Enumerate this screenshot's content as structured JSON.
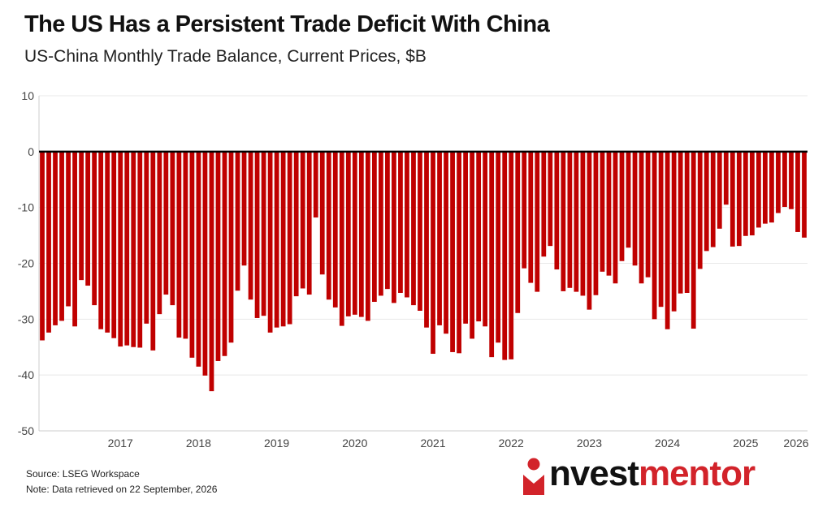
{
  "title": "The US Has a Persistent Trade Deficit With China",
  "subtitle": "US-China Monthly Trade Balance, Current Prices, $B",
  "footer": {
    "source": "Source: LSEG Workspace",
    "note": "Note: Data retrieved on 22 September, 2026"
  },
  "logo": {
    "part1": "nvest",
    "part2": "mentor",
    "icon": "person-i-icon"
  },
  "colors": {
    "bar": "#c00000",
    "zero_line": "#000000",
    "grid": "#e8e8e8",
    "brand": "#d2232a"
  },
  "chart_data": {
    "type": "bar",
    "title": "",
    "xlabel": "",
    "ylabel": "",
    "ylim": [
      -50,
      10
    ],
    "yticks": [
      10,
      0,
      -10,
      -20,
      -30,
      -40,
      -50
    ],
    "grid": true,
    "x_start": "2016-01",
    "xticks": [
      {
        "label": "2017",
        "date": "2017-01"
      },
      {
        "label": "2018",
        "date": "2018-01"
      },
      {
        "label": "2019",
        "date": "2019-01"
      },
      {
        "label": "2020",
        "date": "2020-01"
      },
      {
        "label": "2021",
        "date": "2021-01"
      },
      {
        "label": "2022",
        "date": "2022-01"
      },
      {
        "label": "2023",
        "date": "2023-01"
      },
      {
        "label": "2024",
        "date": "2024-01"
      },
      {
        "label": "2025",
        "date": "2025-01"
      },
      {
        "label": "2026",
        "date": "2026-01"
      }
    ],
    "series": [
      {
        "values": [
          -33.8,
          -32.4,
          -31.1,
          -30.3,
          -27.7,
          -31.3,
          -23.0,
          -24.0,
          -27.5,
          -31.8,
          -32.4,
          -33.4,
          -34.9,
          -34.7,
          -35.0,
          -35.1,
          -30.8,
          -35.6,
          -29.1,
          -25.6,
          -27.5,
          -33.3,
          -33.5,
          -36.9,
          -38.5,
          -40.1,
          -42.9,
          -37.5,
          -36.6,
          -34.2,
          -24.9,
          -20.4,
          -26.5,
          -29.8,
          -29.4,
          -32.4,
          -31.5,
          -31.3,
          -30.9,
          -25.9,
          -24.5,
          -25.6,
          -11.8,
          -22.0,
          -26.5,
          -27.9,
          -31.2,
          -29.5,
          -29.2,
          -29.6,
          -30.3,
          -26.9,
          -25.8,
          -24.6,
          -27.1,
          -25.3,
          -26.1,
          -27.5,
          -28.5,
          -31.5,
          -36.2,
          -31.1,
          -32.6,
          -35.9,
          -36.1,
          -30.8,
          -33.5,
          -30.4,
          -31.3,
          -36.8,
          -34.2,
          -37.3,
          -37.2,
          -28.9,
          -20.9,
          -23.5,
          -25.1,
          -18.8,
          -16.9,
          -21.1,
          -25.0,
          -24.4,
          -25.1,
          -25.8,
          -28.3,
          -25.7,
          -21.5,
          -22.2,
          -23.6,
          -19.6,
          -17.2,
          -20.4,
          -23.6,
          -22.5,
          -30.0,
          -27.8,
          -31.8,
          -28.6,
          -25.4,
          -25.3,
          -31.7,
          -21.0,
          -17.8,
          -17.1,
          -13.8,
          -9.5,
          -17.0,
          -16.9,
          -15.1,
          -15.0,
          -13.6,
          -12.9,
          -12.7,
          -11.0,
          -9.9,
          -10.3,
          -14.4,
          -15.4
        ]
      }
    ]
  }
}
